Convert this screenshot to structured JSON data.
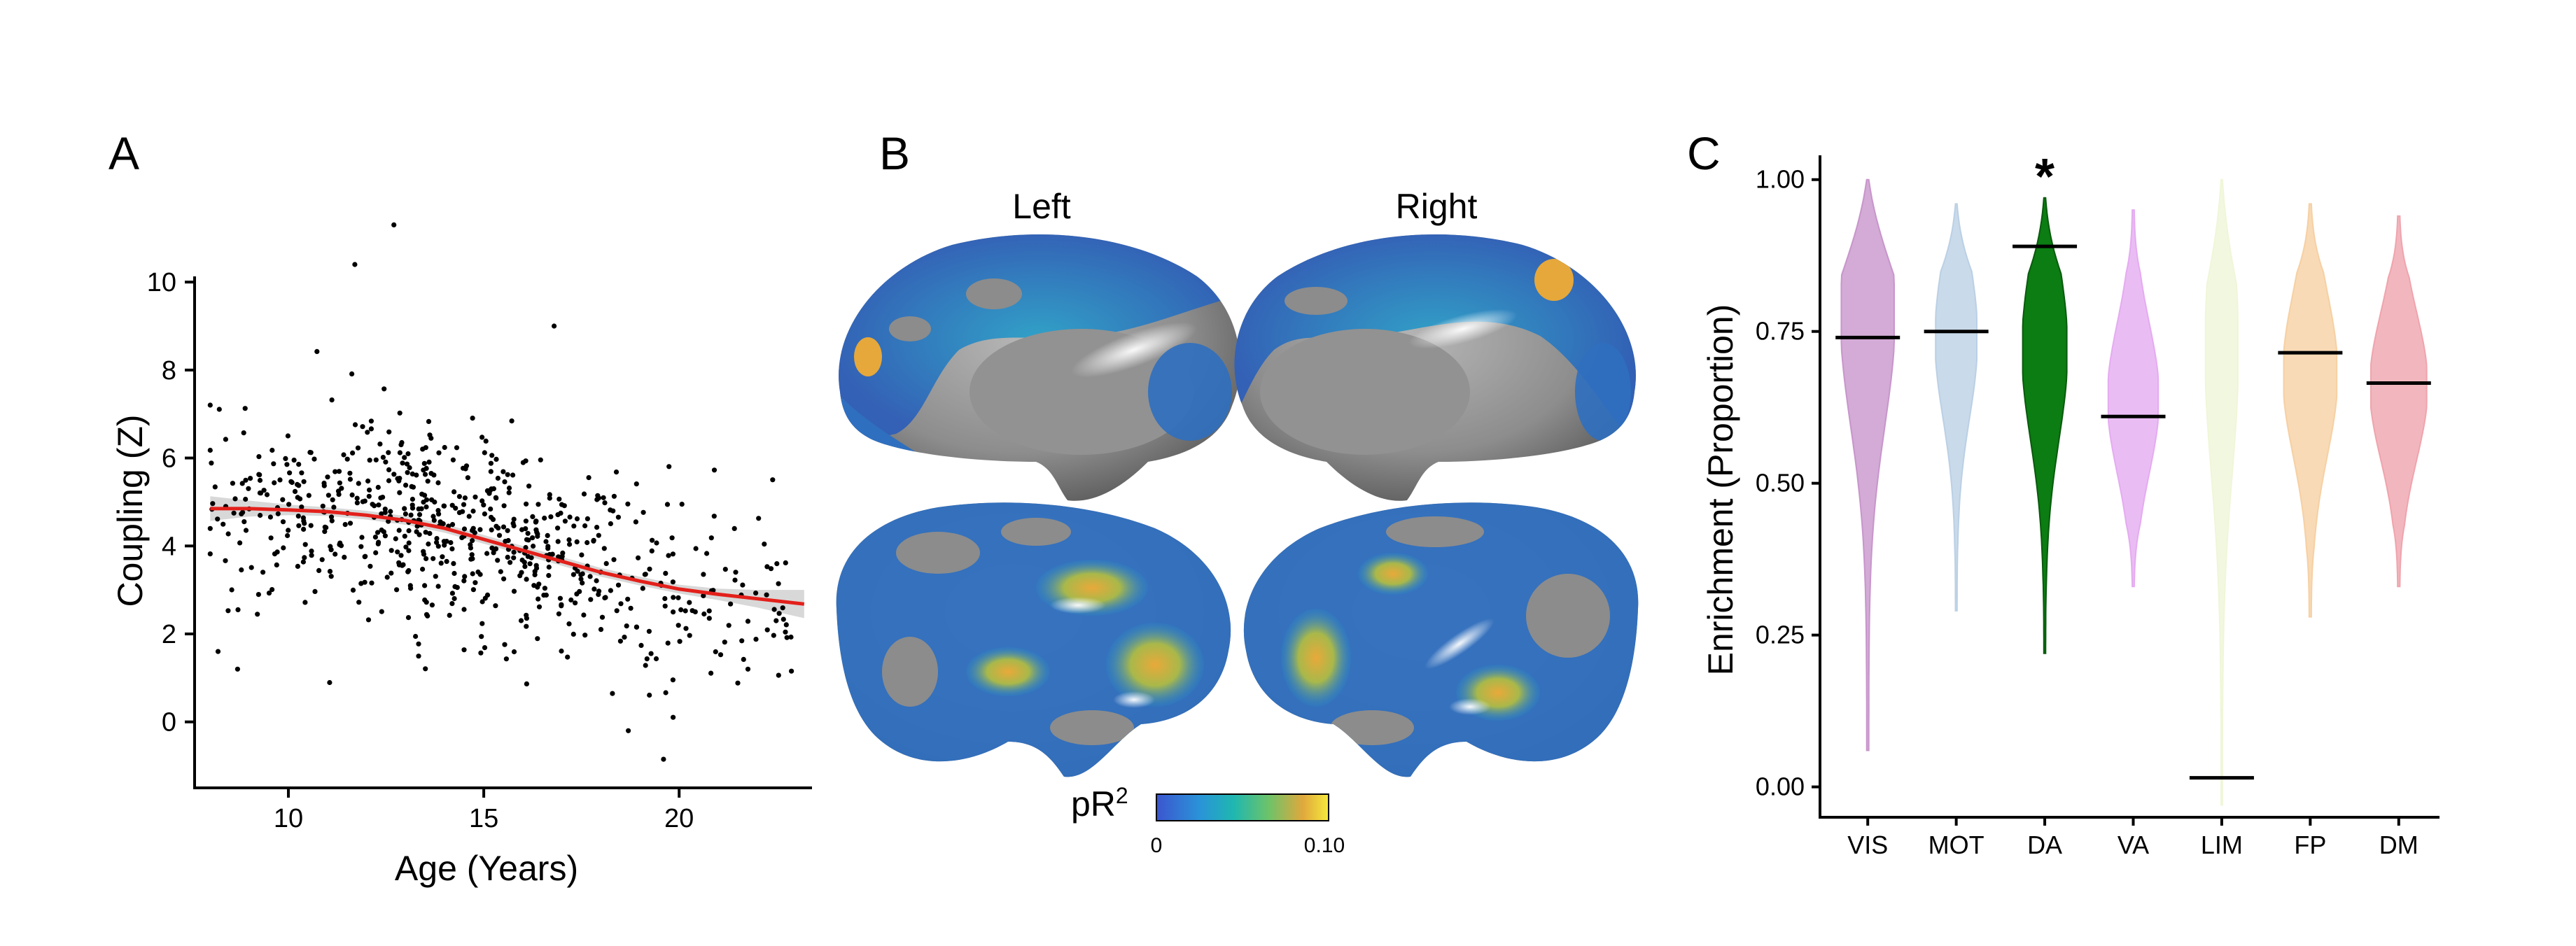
{
  "panel_labels": {
    "a": "A",
    "b": "B",
    "c": "C"
  },
  "brain": {
    "left_label": "Left",
    "right_label": "Right",
    "colorbar_title": "pR",
    "colorbar_superscript": "2",
    "colorbar_min_label": "0",
    "colorbar_max_label": "0.10",
    "colorbar_range": [
      0,
      0.1
    ],
    "colormap": [
      "#3b55cf",
      "#2a93d8",
      "#1fb7b0",
      "#6cc36a",
      "#e0a83c",
      "#f5e93d"
    ],
    "cortex_color": "#8d8d8d"
  },
  "chart_data": [
    {
      "type": "scatter",
      "panel": "A",
      "xlabel": "Age (Years)",
      "ylabel": "Coupling (Z)",
      "xlim": [
        7.6,
        23.4
      ],
      "ylim": [
        -1.5,
        11.8
      ],
      "xticks": [
        10,
        15,
        20
      ],
      "yticks": [
        0,
        2,
        4,
        6,
        8,
        10
      ],
      "point_color": "#000000",
      "fit": {
        "color": "#e3201b",
        "band_color": "#d4d4d4",
        "x": [
          8,
          9,
          10,
          11,
          12,
          13,
          14,
          15,
          16,
          17,
          18,
          19,
          20,
          21,
          22,
          23.2
        ],
        "y": [
          4.85,
          4.85,
          4.82,
          4.78,
          4.7,
          4.58,
          4.4,
          4.15,
          3.9,
          3.65,
          3.4,
          3.2,
          3.02,
          2.9,
          2.8,
          2.68
        ],
        "ci_halfwidth": [
          0.28,
          0.18,
          0.12,
          0.1,
          0.1,
          0.1,
          0.1,
          0.1,
          0.1,
          0.1,
          0.1,
          0.1,
          0.1,
          0.13,
          0.2,
          0.32
        ]
      },
      "annotated_points": [
        {
          "x": 12.7,
          "y": 11.3
        },
        {
          "x": 11.7,
          "y": 10.4
        },
        {
          "x": 16.8,
          "y": 9.0
        },
        {
          "x": 19.6,
          "y": -0.85
        },
        {
          "x": 18.7,
          "y": -0.2
        },
        {
          "x": 8.2,
          "y": 1.6
        },
        {
          "x": 8.7,
          "y": 1.2
        }
      ],
      "n_points": 700
    },
    {
      "type": "violin",
      "panel": "C",
      "xlabel": "",
      "ylabel": "Enrichment (Proportion)",
      "ylim": [
        -0.05,
        1.04
      ],
      "yticks": [
        0.0,
        0.25,
        0.5,
        0.75,
        1.0
      ],
      "ytick_labels": [
        "0.00",
        "0.25",
        "0.50",
        "0.75",
        "1.00"
      ],
      "categories": [
        "VIS",
        "MOT",
        "DA",
        "VA",
        "LIM",
        "FP",
        "DM"
      ],
      "observed": [
        0.74,
        0.75,
        0.89,
        0.61,
        0.015,
        0.715,
        0.665
      ],
      "significant": [
        "DA"
      ],
      "significance_marker": "*",
      "fill_colors": [
        "#c48fc8",
        "#b7cde3",
        "#0b7d12",
        "#e3a6f0",
        "#eef5d6",
        "#f5cd9e",
        "#ee9fa8"
      ],
      "alpha": [
        0.75,
        0.75,
        1.0,
        0.75,
        0.75,
        0.75,
        0.75
      ],
      "distributions": [
        {
          "min": 0.06,
          "max": 1.0,
          "mode": 0.78,
          "width": 0.9
        },
        {
          "min": 0.29,
          "max": 0.96,
          "mode": 0.74,
          "width": 0.7
        },
        {
          "min": 0.22,
          "max": 0.97,
          "mode": 0.72,
          "width": 0.75
        },
        {
          "min": 0.33,
          "max": 0.95,
          "mode": 0.64,
          "width": 0.85
        },
        {
          "min": -0.03,
          "max": 1.0,
          "mode": 0.72,
          "width": 0.55
        },
        {
          "min": 0.28,
          "max": 0.96,
          "mode": 0.68,
          "width": 0.9
        },
        {
          "min": 0.33,
          "max": 0.94,
          "mode": 0.66,
          "width": 0.95
        }
      ]
    }
  ]
}
